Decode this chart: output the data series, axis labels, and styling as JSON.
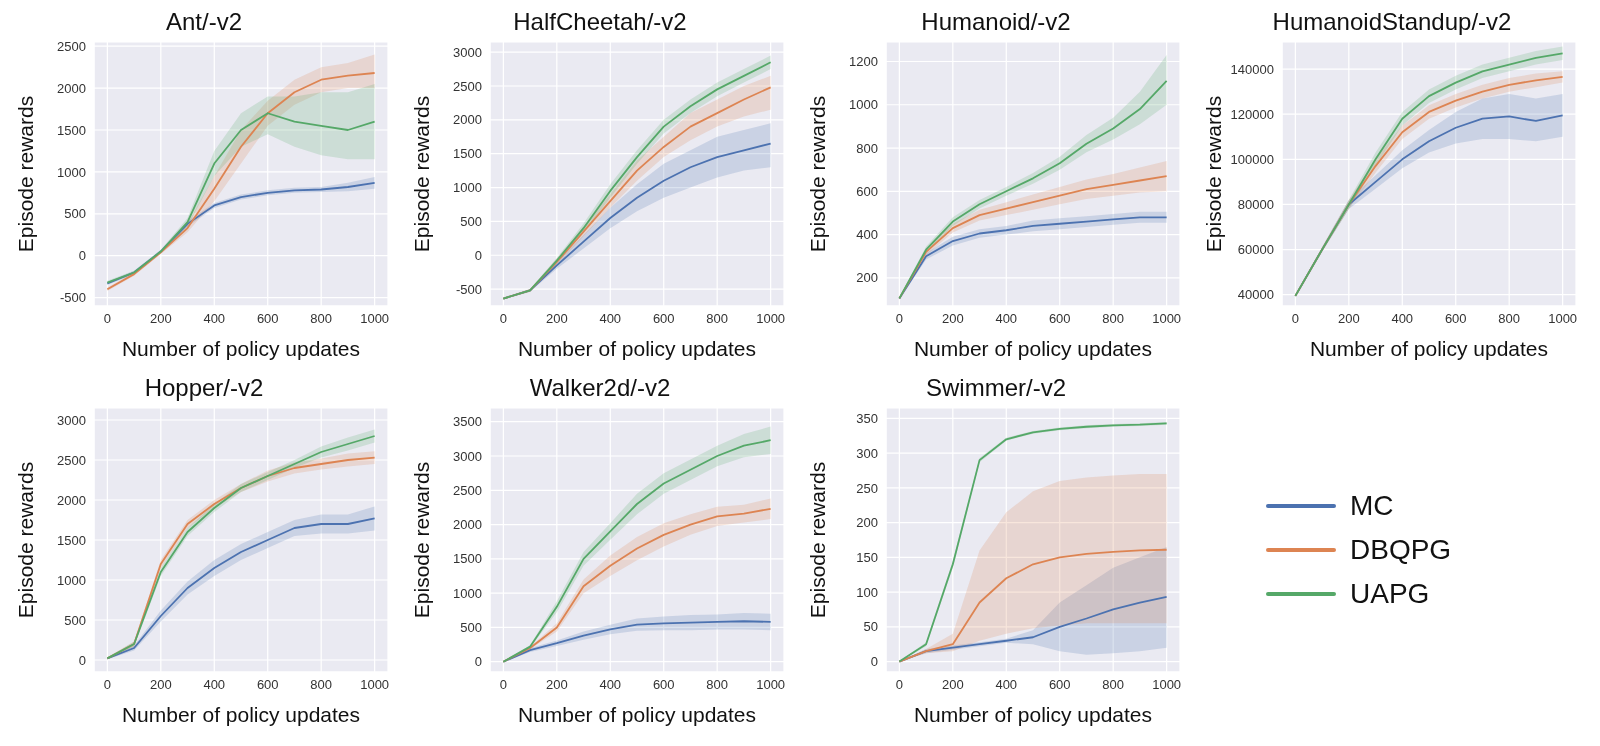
{
  "chart_data": [
    {
      "type": "line",
      "title": "Ant/-v2",
      "xlabel": "Number of policy updates",
      "ylabel": "Episode rewards",
      "grid": true,
      "xlim": [
        -50,
        1050
      ],
      "xticks": [
        0,
        200,
        400,
        600,
        800,
        1000
      ],
      "ylim": [
        -600,
        2550
      ],
      "yticks": [
        -500,
        0,
        500,
        1000,
        1500,
        2000,
        2500
      ],
      "x": [
        0,
        100,
        200,
        300,
        400,
        500,
        600,
        700,
        800,
        900,
        1000
      ],
      "series": [
        {
          "color": "#4c72b0",
          "values": [
            -330,
            -200,
            50,
            380,
            600,
            700,
            750,
            780,
            790,
            820,
            870
          ],
          "lower": [
            -350,
            -220,
            30,
            350,
            570,
            670,
            720,
            750,
            760,
            770,
            800
          ],
          "upper": [
            -310,
            -180,
            70,
            410,
            630,
            730,
            780,
            810,
            820,
            870,
            940
          ]
        },
        {
          "color": "#dd8452",
          "values": [
            -400,
            -220,
            40,
            330,
            800,
            1300,
            1700,
            1950,
            2100,
            2150,
            2180
          ],
          "lower": [
            -420,
            -240,
            20,
            280,
            650,
            1100,
            1550,
            1800,
            1950,
            2000,
            2000
          ],
          "upper": [
            -380,
            -200,
            60,
            380,
            950,
            1500,
            1850,
            2100,
            2250,
            2300,
            2400
          ]
        },
        {
          "color": "#55a868",
          "values": [
            -320,
            -200,
            50,
            400,
            1100,
            1500,
            1700,
            1600,
            1550,
            1500,
            1600
          ],
          "lower": [
            -340,
            -220,
            30,
            350,
            950,
            1300,
            1450,
            1300,
            1200,
            1150,
            1150
          ],
          "upper": [
            -300,
            -180,
            70,
            450,
            1250,
            1700,
            1900,
            1900,
            1950,
            1950,
            2050
          ]
        }
      ]
    },
    {
      "type": "line",
      "title": "HalfCheetah/-v2",
      "xlabel": "Number of policy updates",
      "ylabel": "Episode rewards",
      "grid": true,
      "xlim": [
        -50,
        1050
      ],
      "xticks": [
        0,
        200,
        400,
        600,
        800,
        1000
      ],
      "ylim": [
        -750,
        3150
      ],
      "yticks": [
        -500,
        0,
        500,
        1000,
        1500,
        2000,
        2500,
        3000
      ],
      "x": [
        0,
        100,
        200,
        300,
        400,
        500,
        600,
        700,
        800,
        900,
        1000
      ],
      "series": [
        {
          "color": "#4c72b0",
          "values": [
            -640,
            -520,
            -150,
            200,
            550,
            850,
            1100,
            1300,
            1450,
            1550,
            1650
          ],
          "lower": [
            -650,
            -540,
            -200,
            100,
            400,
            650,
            850,
            1000,
            1150,
            1250,
            1300
          ],
          "upper": [
            -630,
            -500,
            -100,
            300,
            700,
            1050,
            1350,
            1550,
            1750,
            1850,
            1950
          ]
        },
        {
          "color": "#dd8452",
          "values": [
            -640,
            -520,
            -100,
            350,
            800,
            1250,
            1600,
            1900,
            2100,
            2300,
            2480
          ],
          "lower": [
            -650,
            -540,
            -150,
            280,
            700,
            1100,
            1450,
            1700,
            1900,
            2050,
            2150
          ],
          "upper": [
            -630,
            -500,
            -50,
            420,
            900,
            1400,
            1750,
            2100,
            2300,
            2500,
            2650
          ]
        },
        {
          "color": "#55a868",
          "values": [
            -640,
            -520,
            -80,
            400,
            950,
            1450,
            1900,
            2200,
            2450,
            2650,
            2850
          ],
          "lower": [
            -650,
            -540,
            -120,
            330,
            850,
            1350,
            1800,
            2100,
            2350,
            2550,
            2750
          ],
          "upper": [
            -630,
            -500,
            -40,
            470,
            1050,
            1550,
            2000,
            2300,
            2550,
            2750,
            2950
          ]
        }
      ]
    },
    {
      "type": "line",
      "title": "Humanoid/-v2",
      "xlabel": "Number of policy updates",
      "ylabel": "Episode rewards",
      "grid": true,
      "xlim": [
        -50,
        1050
      ],
      "xticks": [
        0,
        200,
        400,
        600,
        800,
        1000
      ],
      "ylim": [
        70,
        1290
      ],
      "yticks": [
        200,
        400,
        600,
        800,
        1000,
        1200
      ],
      "x": [
        0,
        100,
        200,
        300,
        400,
        500,
        600,
        700,
        800,
        900,
        1000
      ],
      "series": [
        {
          "color": "#4c72b0",
          "values": [
            105,
            300,
            370,
            405,
            420,
            440,
            450,
            460,
            470,
            480,
            480
          ],
          "lower": [
            100,
            285,
            350,
            385,
            400,
            415,
            425,
            435,
            445,
            455,
            455
          ],
          "upper": [
            110,
            315,
            390,
            425,
            440,
            465,
            475,
            485,
            495,
            505,
            505
          ]
        },
        {
          "color": "#dd8452",
          "values": [
            105,
            320,
            430,
            490,
            520,
            550,
            580,
            610,
            630,
            650,
            670
          ],
          "lower": [
            100,
            305,
            410,
            465,
            490,
            515,
            540,
            565,
            580,
            595,
            600
          ],
          "upper": [
            110,
            335,
            450,
            515,
            550,
            585,
            620,
            655,
            680,
            710,
            740
          ]
        },
        {
          "color": "#55a868",
          "values": [
            105,
            330,
            460,
            540,
            600,
            660,
            730,
            820,
            890,
            980,
            1110
          ],
          "lower": [
            100,
            315,
            440,
            520,
            580,
            635,
            700,
            780,
            840,
            910,
            1000
          ],
          "upper": [
            110,
            345,
            480,
            560,
            620,
            685,
            760,
            860,
            940,
            1060,
            1230
          ]
        }
      ]
    },
    {
      "type": "line",
      "title": "HumanoidStandup/-v2",
      "xlabel": "Number of policy updates",
      "ylabel": "Episode rewards",
      "grid": true,
      "xlim": [
        -50,
        1050
      ],
      "xticks": [
        0,
        200,
        400,
        600,
        800,
        1000
      ],
      "ylim": [
        35000,
        152000
      ],
      "yticks": [
        40000,
        60000,
        80000,
        100000,
        120000,
        140000
      ],
      "x": [
        0,
        100,
        200,
        300,
        400,
        500,
        600,
        700,
        800,
        900,
        1000
      ],
      "series": [
        {
          "color": "#4c72b0",
          "values": [
            39500,
            60000,
            80000,
            90000,
            100000,
            108000,
            114000,
            118000,
            119000,
            117000,
            119500
          ],
          "lower": [
            39000,
            59000,
            78000,
            87000,
            96000,
            103000,
            107000,
            109000,
            109000,
            108000,
            110000
          ],
          "upper": [
            40000,
            61000,
            82000,
            93000,
            104000,
            113000,
            121000,
            127000,
            129000,
            127000,
            129000
          ]
        },
        {
          "color": "#dd8452",
          "values": [
            39500,
            60000,
            80000,
            97000,
            112000,
            121000,
            126000,
            130000,
            133000,
            135000,
            136500
          ],
          "lower": [
            39000,
            59000,
            78000,
            94000,
            109000,
            118000,
            123000,
            127000,
            130000,
            132000,
            134000
          ],
          "upper": [
            40000,
            61000,
            82000,
            100000,
            115000,
            124000,
            129000,
            133000,
            136000,
            138000,
            139000
          ]
        },
        {
          "color": "#55a868",
          "values": [
            39500,
            60000,
            80000,
            100000,
            118000,
            128000,
            134000,
            139000,
            142000,
            145000,
            147000
          ],
          "lower": [
            39000,
            59000,
            78000,
            97000,
            115000,
            125000,
            131000,
            136000,
            139000,
            142000,
            144000
          ],
          "upper": [
            40000,
            61000,
            82000,
            103000,
            121000,
            131000,
            137000,
            142000,
            145000,
            148000,
            150000
          ]
        }
      ]
    },
    {
      "type": "line",
      "title": "Hopper/-v2",
      "xlabel": "Number of policy updates",
      "ylabel": "Episode rewards",
      "grid": true,
      "xlim": [
        -50,
        1050
      ],
      "xticks": [
        0,
        200,
        400,
        600,
        800,
        1000
      ],
      "ylim": [
        -150,
        3150
      ],
      "yticks": [
        0,
        500,
        1000,
        1500,
        2000,
        2500,
        3000
      ],
      "x": [
        0,
        100,
        200,
        300,
        400,
        500,
        600,
        700,
        800,
        900,
        1000
      ],
      "series": [
        {
          "color": "#4c72b0",
          "values": [
            20,
            150,
            550,
            900,
            1150,
            1350,
            1500,
            1650,
            1700,
            1700,
            1770
          ],
          "lower": [
            10,
            120,
            480,
            820,
            1050,
            1250,
            1400,
            1550,
            1580,
            1580,
            1620
          ],
          "upper": [
            30,
            180,
            620,
            980,
            1250,
            1450,
            1600,
            1750,
            1820,
            1820,
            1920
          ]
        },
        {
          "color": "#dd8452",
          "values": [
            20,
            200,
            1200,
            1700,
            1950,
            2150,
            2300,
            2400,
            2450,
            2500,
            2530
          ],
          "lower": [
            10,
            170,
            1150,
            1650,
            1900,
            2100,
            2230,
            2330,
            2380,
            2420,
            2450
          ],
          "upper": [
            30,
            230,
            1250,
            1750,
            2000,
            2200,
            2370,
            2470,
            2520,
            2580,
            2610
          ]
        },
        {
          "color": "#55a868",
          "values": [
            20,
            200,
            1100,
            1600,
            1900,
            2150,
            2300,
            2450,
            2600,
            2700,
            2800
          ],
          "lower": [
            10,
            170,
            1050,
            1550,
            1850,
            2100,
            2250,
            2400,
            2530,
            2620,
            2720
          ],
          "upper": [
            30,
            230,
            1150,
            1650,
            1950,
            2200,
            2350,
            2500,
            2670,
            2780,
            2880
          ]
        }
      ]
    },
    {
      "type": "line",
      "title": "Walker2d/-v2",
      "xlabel": "Number of policy updates",
      "ylabel": "Episode rewards",
      "grid": true,
      "xlim": [
        -50,
        1050
      ],
      "xticks": [
        0,
        200,
        400,
        600,
        800,
        1000
      ],
      "ylim": [
        -150,
        3700
      ],
      "yticks": [
        0,
        500,
        1000,
        1500,
        2000,
        2500,
        3000,
        3500
      ],
      "x": [
        0,
        100,
        200,
        300,
        400,
        500,
        600,
        700,
        800,
        900,
        1000
      ],
      "series": [
        {
          "color": "#4c72b0",
          "values": [
            0,
            170,
            270,
            380,
            470,
            540,
            560,
            570,
            580,
            590,
            580
          ],
          "lower": [
            -10,
            140,
            230,
            320,
            400,
            450,
            460,
            460,
            470,
            470,
            460
          ],
          "upper": [
            10,
            200,
            310,
            440,
            540,
            630,
            660,
            680,
            690,
            710,
            700
          ]
        },
        {
          "color": "#dd8452",
          "values": [
            0,
            200,
            500,
            1100,
            1400,
            1650,
            1850,
            2000,
            2120,
            2160,
            2230
          ],
          "lower": [
            -10,
            180,
            440,
            1000,
            1250,
            1480,
            1680,
            1850,
            1980,
            2030,
            2080
          ],
          "upper": [
            10,
            220,
            560,
            1200,
            1550,
            1820,
            2020,
            2150,
            2260,
            2290,
            2380
          ]
        },
        {
          "color": "#55a868",
          "values": [
            0,
            220,
            800,
            1500,
            1900,
            2300,
            2600,
            2800,
            3000,
            3150,
            3230
          ],
          "lower": [
            -10,
            200,
            720,
            1400,
            1780,
            2150,
            2450,
            2650,
            2850,
            2980,
            3030
          ],
          "upper": [
            10,
            240,
            880,
            1600,
            2020,
            2450,
            2750,
            2950,
            3150,
            3320,
            3430
          ]
        }
      ]
    },
    {
      "type": "line",
      "title": "Swimmer/-v2",
      "xlabel": "Number of policy updates",
      "ylabel": "Episode rewards",
      "grid": true,
      "legend": "right",
      "xlim": [
        -50,
        1050
      ],
      "xticks": [
        0,
        200,
        400,
        600,
        800,
        1000
      ],
      "ylim": [
        -15,
        365
      ],
      "yticks": [
        0,
        50,
        100,
        150,
        200,
        250,
        300,
        350
      ],
      "x": [
        0,
        100,
        200,
        300,
        400,
        500,
        600,
        700,
        800,
        900,
        1000
      ],
      "series": [
        {
          "name": "MC",
          "color": "#4c72b0",
          "values": [
            0,
            15,
            20,
            25,
            30,
            35,
            50,
            62,
            75,
            85,
            93
          ],
          "lower": [
            0,
            12,
            17,
            22,
            27,
            25,
            15,
            10,
            12,
            15,
            20
          ],
          "upper": [
            0,
            18,
            23,
            28,
            33,
            45,
            85,
            110,
            135,
            150,
            165
          ]
        },
        {
          "name": "DBQPG",
          "color": "#dd8452",
          "values": [
            0,
            15,
            25,
            85,
            120,
            140,
            150,
            155,
            158,
            160,
            161
          ],
          "lower": [
            0,
            12,
            15,
            30,
            40,
            48,
            52,
            55,
            55,
            55,
            55
          ],
          "upper": [
            0,
            18,
            40,
            160,
            215,
            245,
            260,
            265,
            268,
            270,
            270
          ]
        },
        {
          "name": "UAPG",
          "color": "#55a868",
          "values": [
            0,
            25,
            140,
            290,
            320,
            330,
            335,
            338,
            340,
            341,
            343
          ],
          "lower": [
            0,
            22,
            135,
            287,
            318,
            328,
            333,
            336,
            338,
            339,
            341
          ],
          "upper": [
            0,
            28,
            145,
            293,
            322,
            332,
            337,
            340,
            342,
            343,
            345
          ]
        }
      ]
    }
  ]
}
